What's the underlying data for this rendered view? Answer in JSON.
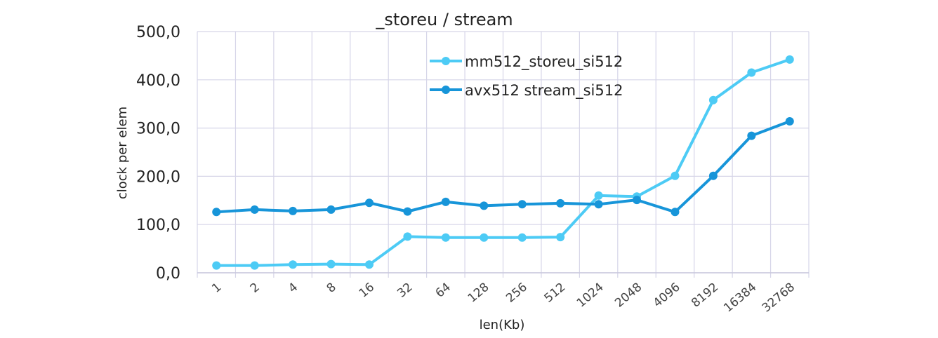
{
  "chart_data": {
    "type": "line",
    "title": "_storeu / stream",
    "xlabel": "len(Kb)",
    "ylabel": "clock per elem",
    "categories": [
      "1",
      "2",
      "4",
      "8",
      "16",
      "32",
      "64",
      "128",
      "256",
      "512",
      "1024",
      "2048",
      "4096",
      "8192",
      "16384",
      "32768"
    ],
    "ylim": [
      0,
      500
    ],
    "yticks": [
      "0,0",
      "100,0",
      "200,0",
      "300,0",
      "400,0",
      "500,0"
    ],
    "grid": true,
    "legend_position": "top-center",
    "series": [
      {
        "name": "mm512_storeu_si512",
        "color": "#4DCBF5",
        "values": [
          15,
          15,
          17,
          18,
          17,
          75,
          73,
          73,
          73,
          74,
          160,
          158,
          201,
          358,
          415,
          442
        ]
      },
      {
        "name": "avx512 stream_si512",
        "color": "#1795D9",
        "values": [
          126,
          131,
          128,
          131,
          145,
          127,
          147,
          139,
          142,
          144,
          142,
          151,
          126,
          201,
          284,
          314
        ]
      }
    ]
  }
}
